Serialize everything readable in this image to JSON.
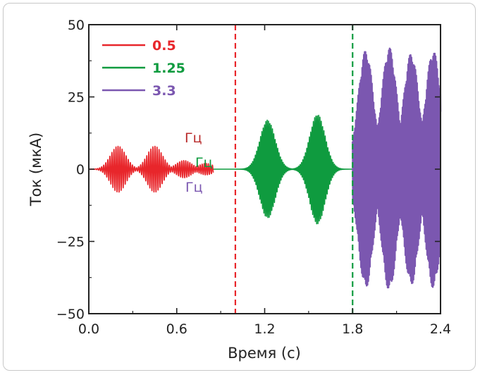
{
  "chart_data": {
    "type": "line",
    "title": "",
    "xlabel": "Время (с)",
    "ylabel": "Ток (мкА)",
    "xlim": [
      0.0,
      2.4
    ],
    "ylim": [
      -50,
      50
    ],
    "xticks": [
      0.0,
      0.6,
      1.2,
      1.8,
      2.4
    ],
    "xtick_labels": [
      "0.0",
      "0.6",
      "1.2",
      "1.8",
      "2.4"
    ],
    "yticks": [
      -50,
      -25,
      0,
      25,
      50
    ],
    "ytick_labels": [
      "−50",
      "−25",
      "0",
      "25",
      "50"
    ],
    "grid": false,
    "legend_position": "top-left",
    "series": [
      {
        "name": "0.5",
        "color": "#e8262b",
        "envelope": [
          {
            "x": 0.2,
            "y": 8
          },
          {
            "x": 0.45,
            "y": 8
          },
          {
            "x": 0.65,
            "y": 3
          },
          {
            "x": 0.8,
            "y": 2
          }
        ],
        "x_range": [
          0.0,
          0.85
        ]
      },
      {
        "name": "1.25",
        "color": "#0f9b3f",
        "envelope": [
          {
            "x": 1.22,
            "y": 17
          },
          {
            "x": 1.56,
            "y": 19
          }
        ],
        "x_range": [
          0.85,
          1.8
        ]
      },
      {
        "name": "3.3",
        "color": "#7b57b0",
        "envelope": [
          {
            "x": 1.89,
            "y": 41
          },
          {
            "x": 2.05,
            "y": 42
          },
          {
            "x": 2.2,
            "y": 40
          },
          {
            "x": 2.35,
            "y": 41
          }
        ],
        "x_range": [
          1.8,
          2.4
        ]
      }
    ],
    "vlines": [
      {
        "x": 1.0,
        "color": "#e8262b",
        "style": "dashed"
      },
      {
        "x": 1.8,
        "color": "#0f9b3f",
        "style": "dashed"
      }
    ],
    "unit_labels": [
      {
        "text": "Гц",
        "color": "#b82a2a"
      },
      {
        "text": "Гц",
        "color": "#0f9b3f"
      },
      {
        "text": "Гц",
        "color": "#7b57b0"
      }
    ]
  }
}
